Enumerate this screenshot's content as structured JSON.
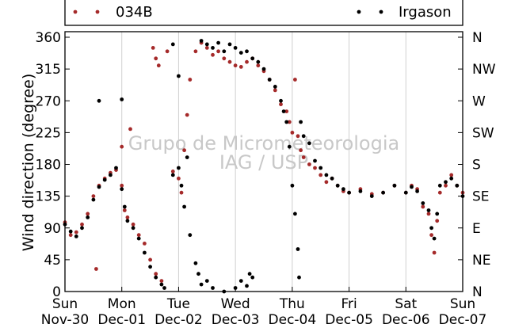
{
  "chart_data": {
    "type": "scatter",
    "ylabel": "Wind direction (degree)",
    "ylim": [
      0,
      360
    ],
    "yticks": [
      0,
      45,
      90,
      135,
      180,
      225,
      270,
      315,
      360
    ],
    "right_ticks": [
      {
        "value": 0,
        "label": "N"
      },
      {
        "value": 45,
        "label": "NE"
      },
      {
        "value": 90,
        "label": "E"
      },
      {
        "value": 135,
        "label": "SE"
      },
      {
        "value": 180,
        "label": "S"
      },
      {
        "value": 225,
        "label": "SW"
      },
      {
        "value": 270,
        "label": "W"
      },
      {
        "value": 315,
        "label": "NW"
      },
      {
        "value": 360,
        "label": "N"
      }
    ],
    "xlim_days": [
      0,
      7
    ],
    "xticks": [
      {
        "day": "Sun",
        "date": "Nov-30"
      },
      {
        "day": "Mon",
        "date": "Dec-01"
      },
      {
        "day": "Tue",
        "date": "Dec-02"
      },
      {
        "day": "Wed",
        "date": "Dec-03"
      },
      {
        "day": "Thu",
        "date": "Dec-04"
      },
      {
        "day": "Fri",
        "date": "Dec-05"
      },
      {
        "day": "Sat",
        "date": "Dec-06"
      },
      {
        "day": "Sun",
        "date": "Dec-07"
      }
    ],
    "grid": "vertical",
    "legend_placement": "top",
    "series": [
      {
        "name": "034B",
        "color": "#a52a2a",
        "points": [
          [
            0.0,
            98
          ],
          [
            0.1,
            80
          ],
          [
            0.2,
            84
          ],
          [
            0.3,
            95
          ],
          [
            0.4,
            110
          ],
          [
            0.5,
            135
          ],
          [
            0.6,
            150
          ],
          [
            0.7,
            160
          ],
          [
            0.8,
            168
          ],
          [
            0.9,
            172
          ],
          [
            1.0,
            150
          ],
          [
            1.05,
            115
          ],
          [
            1.1,
            105
          ],
          [
            1.2,
            95
          ],
          [
            1.3,
            80
          ],
          [
            1.4,
            68
          ],
          [
            1.5,
            45
          ],
          [
            1.6,
            25
          ],
          [
            1.7,
            15
          ],
          [
            1.6,
            330
          ],
          [
            1.55,
            345
          ],
          [
            1.65,
            320
          ],
          [
            1.8,
            340
          ],
          [
            1.9,
            170
          ],
          [
            2.0,
            160
          ],
          [
            2.05,
            140
          ],
          [
            2.1,
            200
          ],
          [
            2.15,
            250
          ],
          [
            2.2,
            300
          ],
          [
            2.3,
            340
          ],
          [
            2.4,
            352
          ],
          [
            2.5,
            345
          ],
          [
            2.6,
            335
          ],
          [
            2.7,
            340
          ],
          [
            2.8,
            330
          ],
          [
            2.9,
            325
          ],
          [
            3.0,
            320
          ],
          [
            3.1,
            318
          ],
          [
            3.2,
            325
          ],
          [
            3.3,
            330
          ],
          [
            3.4,
            320
          ],
          [
            3.5,
            312
          ],
          [
            3.6,
            300
          ],
          [
            3.7,
            285
          ],
          [
            3.8,
            265
          ],
          [
            3.9,
            255
          ],
          [
            3.95,
            240
          ],
          [
            4.0,
            225
          ],
          [
            4.05,
            300
          ],
          [
            4.1,
            220
          ],
          [
            4.15,
            200
          ],
          [
            4.2,
            190
          ],
          [
            4.3,
            180
          ],
          [
            4.4,
            175
          ],
          [
            4.5,
            165
          ],
          [
            4.6,
            155
          ],
          [
            4.7,
            160
          ],
          [
            4.8,
            150
          ],
          [
            4.9,
            142
          ],
          [
            5.0,
            140
          ],
          [
            5.2,
            145
          ],
          [
            5.4,
            138
          ],
          [
            5.6,
            140
          ],
          [
            5.8,
            150
          ],
          [
            6.0,
            140
          ],
          [
            6.1,
            150
          ],
          [
            6.2,
            145
          ],
          [
            6.3,
            120
          ],
          [
            6.4,
            110
          ],
          [
            6.45,
            80
          ],
          [
            6.5,
            55
          ],
          [
            6.55,
            100
          ],
          [
            6.6,
            140
          ],
          [
            6.7,
            150
          ],
          [
            6.8,
            165
          ],
          [
            6.9,
            150
          ],
          [
            7.0,
            140
          ],
          [
            0.55,
            32
          ],
          [
            1.15,
            230
          ],
          [
            1.0,
            205
          ]
        ]
      },
      {
        "name": "Irgason",
        "color": "#000000",
        "points": [
          [
            0.0,
            95
          ],
          [
            0.1,
            85
          ],
          [
            0.2,
            78
          ],
          [
            0.3,
            90
          ],
          [
            0.4,
            105
          ],
          [
            0.5,
            130
          ],
          [
            0.6,
            148
          ],
          [
            0.7,
            158
          ],
          [
            0.8,
            165
          ],
          [
            0.9,
            175
          ],
          [
            1.0,
            145
          ],
          [
            1.05,
            120
          ],
          [
            1.1,
            100
          ],
          [
            1.2,
            90
          ],
          [
            1.3,
            75
          ],
          [
            1.4,
            55
          ],
          [
            1.5,
            35
          ],
          [
            1.6,
            20
          ],
          [
            1.7,
            10
          ],
          [
            1.75,
            5
          ],
          [
            1.9,
            165
          ],
          [
            2.0,
            175
          ],
          [
            2.05,
            150
          ],
          [
            2.1,
            120
          ],
          [
            2.15,
            190
          ],
          [
            2.2,
            80
          ],
          [
            2.3,
            40
          ],
          [
            2.35,
            25
          ],
          [
            2.4,
            10
          ],
          [
            2.5,
            15
          ],
          [
            2.6,
            5
          ],
          [
            2.8,
            0
          ],
          [
            3.0,
            5
          ],
          [
            3.2,
            8
          ],
          [
            3.3,
            20
          ],
          [
            2.4,
            355
          ],
          [
            2.5,
            350
          ],
          [
            2.6,
            345
          ],
          [
            2.7,
            352
          ],
          [
            2.8,
            340
          ],
          [
            2.9,
            350
          ],
          [
            3.0,
            345
          ],
          [
            3.1,
            338
          ],
          [
            3.2,
            340
          ],
          [
            3.3,
            330
          ],
          [
            3.4,
            325
          ],
          [
            3.5,
            315
          ],
          [
            3.6,
            300
          ],
          [
            3.7,
            290
          ],
          [
            3.8,
            270
          ],
          [
            3.85,
            255
          ],
          [
            3.9,
            240
          ],
          [
            3.95,
            205
          ],
          [
            4.0,
            150
          ],
          [
            4.05,
            110
          ],
          [
            4.1,
            60
          ],
          [
            4.12,
            20
          ],
          [
            4.15,
            240
          ],
          [
            4.2,
            220
          ],
          [
            4.3,
            210
          ],
          [
            4.4,
            185
          ],
          [
            4.5,
            175
          ],
          [
            4.6,
            165
          ],
          [
            4.7,
            160
          ],
          [
            4.8,
            150
          ],
          [
            4.9,
            145
          ],
          [
            5.0,
            140
          ],
          [
            5.2,
            142
          ],
          [
            5.4,
            135
          ],
          [
            5.6,
            140
          ],
          [
            5.8,
            150
          ],
          [
            6.0,
            140
          ],
          [
            6.1,
            148
          ],
          [
            6.2,
            142
          ],
          [
            6.3,
            125
          ],
          [
            6.4,
            115
          ],
          [
            6.45,
            90
          ],
          [
            6.5,
            75
          ],
          [
            6.55,
            110
          ],
          [
            6.6,
            150
          ],
          [
            6.7,
            155
          ],
          [
            6.8,
            160
          ],
          [
            6.9,
            150
          ],
          [
            7.0,
            135
          ],
          [
            0.6,
            270
          ],
          [
            1.0,
            272
          ],
          [
            2.0,
            305
          ],
          [
            1.9,
            350
          ],
          [
            3.1,
            15
          ],
          [
            3.25,
            25
          ]
        ]
      }
    ],
    "watermark": [
      "Grupo de Micrometeorologia",
      "IAG / USP"
    ]
  }
}
